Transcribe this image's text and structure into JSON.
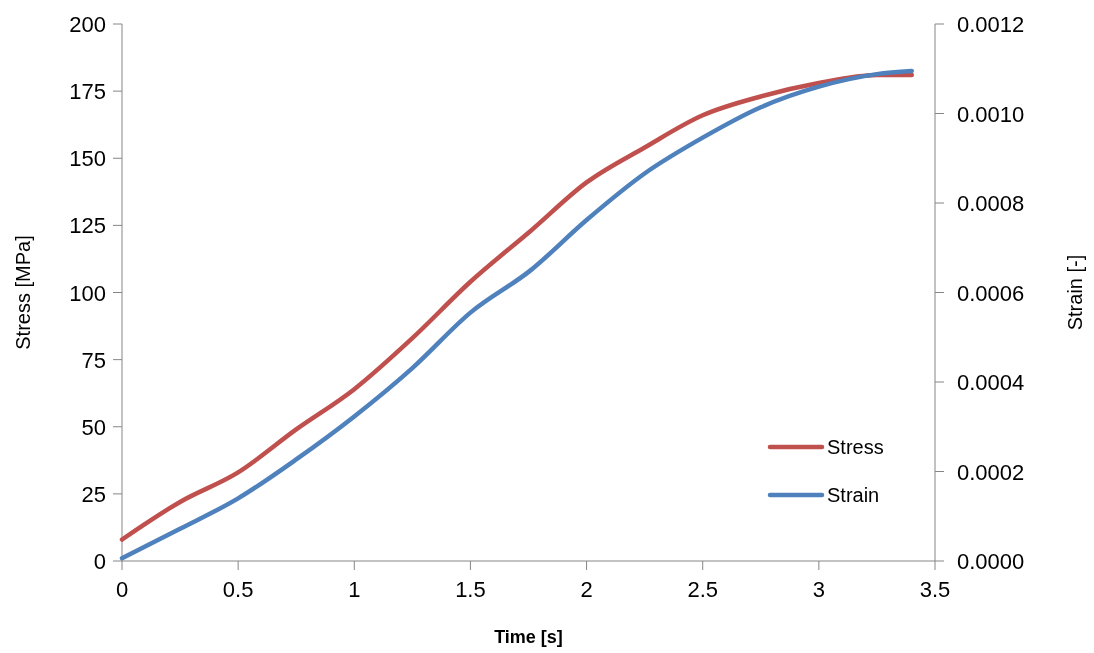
{
  "chart_data": {
    "type": "line",
    "xlabel": "Time [s]",
    "ylabel": "Stress [MPa]",
    "y2label": "Strain [-]",
    "x": [
      0,
      0.25,
      0.5,
      0.75,
      1,
      1.25,
      1.5,
      1.76,
      2,
      2.25,
      2.5,
      2.75,
      3,
      3.25,
      3.4
    ],
    "series": [
      {
        "name": "Stress",
        "color": "#c0504d",
        "values": [
          8,
          22,
          33,
          49,
          64,
          83,
          104,
          123,
          141,
          154,
          166,
          173,
          178,
          181,
          181
        ]
      },
      {
        "name": "Strain",
        "color": "#4f81bd",
        "axis": "y2",
        "values": [
          6e-06,
          7.2e-05,
          0.00014,
          0.000227,
          0.000323,
          0.000431,
          0.000555,
          0.00065,
          0.000762,
          0.000866,
          0.000946,
          0.001014,
          0.00106,
          0.001088,
          0.001095
        ]
      }
    ],
    "xlim": [
      0,
      3.5
    ],
    "xticks": [
      0,
      0.5,
      1,
      1.5,
      2,
      2.5,
      3,
      3.5
    ],
    "ylim": [
      0,
      200
    ],
    "yticks": [
      0,
      25,
      50,
      75,
      100,
      125,
      150,
      175,
      200
    ],
    "y2lim": [
      0,
      0.0012
    ],
    "y2ticks": [
      {
        "value": 0,
        "label": "0.0000"
      },
      {
        "value": 0.0002,
        "label": "0.0002"
      },
      {
        "value": 0.0004,
        "label": "0.0004"
      },
      {
        "value": 0.0006,
        "label": "0.0006"
      },
      {
        "value": 0.0008,
        "label": "0.0008"
      },
      {
        "value": 0.001,
        "label": "0.0010"
      },
      {
        "value": 0.0012,
        "label": "0.0012"
      }
    ],
    "legend": "bottom right",
    "grid": false,
    "marker": "none",
    "line_style": "solid"
  }
}
